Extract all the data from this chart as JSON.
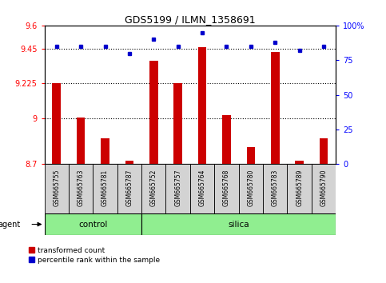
{
  "title": "GDS5199 / ILMN_1358691",
  "samples": [
    "GSM665755",
    "GSM665763",
    "GSM665781",
    "GSM665787",
    "GSM665752",
    "GSM665757",
    "GSM665764",
    "GSM665768",
    "GSM665780",
    "GSM665783",
    "GSM665789",
    "GSM665790"
  ],
  "transformed_count": [
    9.225,
    9.0,
    8.87,
    8.725,
    9.37,
    9.225,
    9.46,
    9.02,
    8.81,
    9.43,
    8.725,
    8.87
  ],
  "percentile_rank": [
    85,
    85,
    85,
    80,
    90,
    85,
    95,
    85,
    85,
    88,
    82,
    85
  ],
  "ylim_left": [
    8.7,
    9.6
  ],
  "ylim_right": [
    0,
    100
  ],
  "yticks_left": [
    8.7,
    9.0,
    9.225,
    9.45,
    9.6
  ],
  "ytick_labels_left": [
    "8.7",
    "9",
    "9.225",
    "9.45",
    "9.6"
  ],
  "yticks_right": [
    0,
    25,
    50,
    75,
    100
  ],
  "ytick_labels_right": [
    "0",
    "25",
    "50",
    "75",
    "100%"
  ],
  "hlines": [
    9.0,
    9.225,
    9.45
  ],
  "control_samples": 4,
  "control_label": "control",
  "silica_label": "silica",
  "agent_label": "agent",
  "bar_color": "#cc0000",
  "dot_color": "#0000cc",
  "green_bg": "#90ee90",
  "box_bg": "#d3d3d3",
  "plot_bg": "#ffffff",
  "bar_width": 0.35,
  "legend_red_label": "transformed count",
  "legend_blue_label": "percentile rank within the sample"
}
